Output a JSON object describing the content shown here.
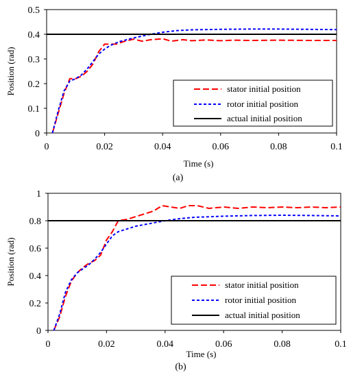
{
  "chart_data": [
    {
      "type": "line",
      "caption": "(a)",
      "xlabel": "Time (s)",
      "ylabel": "Position (rad)",
      "xlim": [
        0,
        0.1
      ],
      "ylim": [
        0,
        0.5
      ],
      "x_ticks": [
        "0",
        "0.02",
        "0.04",
        "0.06",
        "0.08",
        "0.1"
      ],
      "y_ticks": [
        "0",
        "0.1",
        "0.2",
        "0.3",
        "0.4",
        "0.5"
      ],
      "grid": false,
      "legend": "bottom-right",
      "series": [
        {
          "name": "stator initial position",
          "style": "long-dash",
          "color": "#ff0000",
          "points": [
            [
              0.002,
              0
            ],
            [
              0.004,
              0.08
            ],
            [
              0.006,
              0.16
            ],
            [
              0.008,
              0.22
            ],
            [
              0.01,
              0.22
            ],
            [
              0.012,
              0.23
            ],
            [
              0.014,
              0.25
            ],
            [
              0.016,
              0.28
            ],
            [
              0.018,
              0.33
            ],
            [
              0.02,
              0.36
            ],
            [
              0.022,
              0.36
            ],
            [
              0.024,
              0.36
            ],
            [
              0.027,
              0.372
            ],
            [
              0.03,
              0.38
            ],
            [
              0.033,
              0.372
            ],
            [
              0.036,
              0.378
            ],
            [
              0.04,
              0.382
            ],
            [
              0.043,
              0.372
            ],
            [
              0.047,
              0.378
            ],
            [
              0.05,
              0.374
            ],
            [
              0.055,
              0.377
            ],
            [
              0.06,
              0.374
            ],
            [
              0.065,
              0.376
            ],
            [
              0.07,
              0.375
            ],
            [
              0.08,
              0.376
            ],
            [
              0.09,
              0.375
            ],
            [
              0.1,
              0.375
            ]
          ]
        },
        {
          "name": "rotor initial position",
          "style": "short-dash",
          "color": "#0000ff",
          "points": [
            [
              0.002,
              0
            ],
            [
              0.004,
              0.09
            ],
            [
              0.006,
              0.17
            ],
            [
              0.008,
              0.21
            ],
            [
              0.01,
              0.22
            ],
            [
              0.012,
              0.235
            ],
            [
              0.014,
              0.26
            ],
            [
              0.016,
              0.29
            ],
            [
              0.018,
              0.32
            ],
            [
              0.02,
              0.34
            ],
            [
              0.022,
              0.355
            ],
            [
              0.025,
              0.37
            ],
            [
              0.03,
              0.385
            ],
            [
              0.035,
              0.398
            ],
            [
              0.04,
              0.408
            ],
            [
              0.045,
              0.415
            ],
            [
              0.05,
              0.418
            ],
            [
              0.06,
              0.42
            ],
            [
              0.07,
              0.421
            ],
            [
              0.08,
              0.421
            ],
            [
              0.09,
              0.42
            ],
            [
              0.1,
              0.419
            ]
          ]
        },
        {
          "name": "actual initial position",
          "style": "solid",
          "color": "#000000",
          "points": [
            [
              0,
              0.4
            ],
            [
              0.1,
              0.4
            ]
          ]
        }
      ]
    },
    {
      "type": "line",
      "caption": "(b)",
      "xlabel": "Time  (s)",
      "ylabel": "Position (rad)",
      "xlim": [
        0,
        0.1
      ],
      "ylim": [
        0,
        1
      ],
      "x_ticks": [
        "0",
        "0.02",
        "0.04",
        "0.06",
        "0.08",
        "0.1"
      ],
      "y_ticks": [
        "0",
        "0.2",
        "0.4",
        "0.6",
        "0.8",
        "1"
      ],
      "grid": false,
      "legend": "bottom-right",
      "series": [
        {
          "name": "stator initial position",
          "style": "long-dash",
          "color": "#ff0000",
          "points": [
            [
              0.002,
              0
            ],
            [
              0.004,
              0.1
            ],
            [
              0.006,
              0.25
            ],
            [
              0.008,
              0.36
            ],
            [
              0.01,
              0.42
            ],
            [
              0.012,
              0.46
            ],
            [
              0.014,
              0.49
            ],
            [
              0.016,
              0.51
            ],
            [
              0.018,
              0.55
            ],
            [
              0.02,
              0.66
            ],
            [
              0.022,
              0.72
            ],
            [
              0.024,
              0.8
            ],
            [
              0.027,
              0.81
            ],
            [
              0.03,
              0.83
            ],
            [
              0.033,
              0.85
            ],
            [
              0.036,
              0.87
            ],
            [
              0.039,
              0.91
            ],
            [
              0.042,
              0.9
            ],
            [
              0.045,
              0.89
            ],
            [
              0.048,
              0.91
            ],
            [
              0.051,
              0.91
            ],
            [
              0.055,
              0.89
            ],
            [
              0.06,
              0.9
            ],
            [
              0.065,
              0.89
            ],
            [
              0.07,
              0.9
            ],
            [
              0.075,
              0.895
            ],
            [
              0.08,
              0.9
            ],
            [
              0.085,
              0.895
            ],
            [
              0.09,
              0.9
            ],
            [
              0.095,
              0.895
            ],
            [
              0.1,
              0.9
            ]
          ]
        },
        {
          "name": "rotor initial position",
          "style": "short-dash",
          "color": "#0000ff",
          "points": [
            [
              0.002,
              0
            ],
            [
              0.004,
              0.12
            ],
            [
              0.006,
              0.28
            ],
            [
              0.008,
              0.37
            ],
            [
              0.01,
              0.42
            ],
            [
              0.012,
              0.45
            ],
            [
              0.014,
              0.48
            ],
            [
              0.016,
              0.52
            ],
            [
              0.018,
              0.57
            ],
            [
              0.02,
              0.63
            ],
            [
              0.022,
              0.69
            ],
            [
              0.024,
              0.72
            ],
            [
              0.027,
              0.74
            ],
            [
              0.03,
              0.76
            ],
            [
              0.035,
              0.78
            ],
            [
              0.04,
              0.8
            ],
            [
              0.045,
              0.815
            ],
            [
              0.05,
              0.825
            ],
            [
              0.06,
              0.833
            ],
            [
              0.07,
              0.838
            ],
            [
              0.08,
              0.84
            ],
            [
              0.09,
              0.838
            ],
            [
              0.1,
              0.835
            ]
          ]
        },
        {
          "name": "actual initial position",
          "style": "solid",
          "color": "#000000",
          "points": [
            [
              0,
              0.8
            ],
            [
              0.1,
              0.8
            ]
          ]
        }
      ]
    }
  ]
}
